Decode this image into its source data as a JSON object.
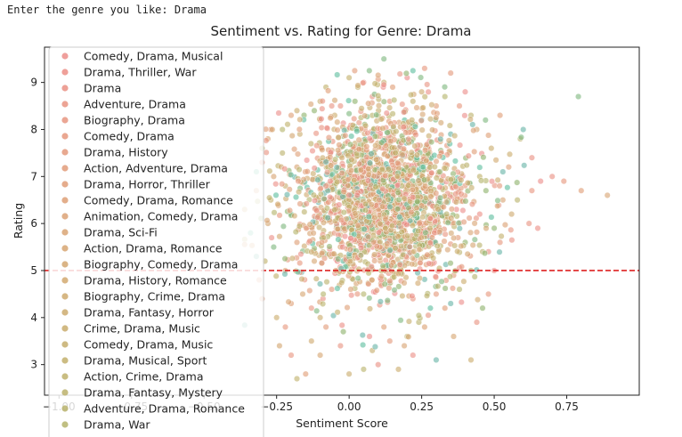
{
  "console": {
    "prompt": "Enter the genre you like: ",
    "input": "Drama"
  },
  "chart_data": {
    "type": "scatter",
    "title": "Sentiment vs. Rating for Genre: Drama",
    "xlabel": "Sentiment Score",
    "ylabel": "Rating",
    "xlim": [
      -1.05,
      1.0
    ],
    "ylim": [
      2.35,
      9.75
    ],
    "x_ticks": [
      -1.0,
      -0.75,
      -0.5,
      -0.25,
      0.0,
      0.25,
      0.5,
      0.75
    ],
    "x_tick_labels": [
      "−1.00",
      "−0.75",
      "−0.50",
      "−0.25",
      "0.00",
      "0.25",
      "0.50",
      "0.75"
    ],
    "y_ticks": [
      3,
      4,
      5,
      6,
      7,
      8,
      9
    ],
    "y_tick_labels": [
      "3",
      "4",
      "5",
      "6",
      "7",
      "8",
      "9"
    ],
    "reference_line": {
      "y": 5,
      "style": "dashed",
      "color": "#dd2222"
    },
    "legend_placement": "upper-left",
    "marker_alpha": 0.62,
    "series": [
      {
        "name": "Comedy, Drama, Musical",
        "color": "#ec8e8b"
      },
      {
        "name": "Drama, Thriller, War",
        "color": "#ec8f87"
      },
      {
        "name": "Drama",
        "color": "#ea9185"
      },
      {
        "name": "Adventure, Drama",
        "color": "#e99483"
      },
      {
        "name": "Biography, Drama",
        "color": "#e89681"
      },
      {
        "name": "Comedy, Drama",
        "color": "#e6987e"
      },
      {
        "name": "Drama, History",
        "color": "#e49a7c"
      },
      {
        "name": "Action, Adventure, Drama",
        "color": "#e29c7a"
      },
      {
        "name": "Drama, Horror, Thriller",
        "color": "#e09e78"
      },
      {
        "name": "Comedy, Drama, Romance",
        "color": "#dea077"
      },
      {
        "name": "Animation, Comedy, Drama",
        "color": "#dca275"
      },
      {
        "name": "Drama, Sci-Fi",
        "color": "#d9a474"
      },
      {
        "name": "Action, Drama, Romance",
        "color": "#d7a672"
      },
      {
        "name": "Biography, Comedy, Drama",
        "color": "#d4a771"
      },
      {
        "name": "Drama, History, Romance",
        "color": "#d2a970"
      },
      {
        "name": "Biography, Crime, Drama",
        "color": "#cfaa6f"
      },
      {
        "name": "Drama, Fantasy, Horror",
        "color": "#ccac6e"
      },
      {
        "name": "Crime, Drama, Music",
        "color": "#c9ad6d"
      },
      {
        "name": "Comedy, Drama, Music",
        "color": "#c6ae6d"
      },
      {
        "name": "Drama, Musical, Sport",
        "color": "#c3b06c"
      },
      {
        "name": "Action, Crime, Drama",
        "color": "#c0b16c"
      },
      {
        "name": "Drama, Fantasy, Mystery",
        "color": "#bcb26c"
      },
      {
        "name": "Adventure, Drama, Romance",
        "color": "#b9b36c"
      },
      {
        "name": "Drama, War",
        "color": "#b5b46c"
      }
    ],
    "points": [
      [
        0.05,
        9.0
      ],
      [
        0.12,
        9.5
      ],
      [
        0.26,
        9.3
      ],
      [
        0.35,
        9.2
      ],
      [
        0.12,
        9.0
      ],
      [
        0.2,
        9.1
      ],
      [
        0.79,
        8.7
      ],
      [
        0.4,
        8.8
      ],
      [
        -0.06,
        8.5
      ],
      [
        0.47,
        8.2
      ],
      [
        0.42,
        8.3
      ],
      [
        0.52,
        8.3
      ],
      [
        0.6,
        8.0
      ],
      [
        0.59,
        7.8
      ],
      [
        0.7,
        7.0
      ],
      [
        0.66,
        6.9
      ],
      [
        0.63,
        7.4
      ],
      [
        0.55,
        7.2
      ],
      [
        0.58,
        6.5
      ],
      [
        0.65,
        5.9
      ],
      [
        0.62,
        6.0
      ],
      [
        0.89,
        6.6
      ],
      [
        0.8,
        6.7
      ],
      [
        0.74,
        6.9
      ],
      [
        0.63,
        6.7
      ],
      [
        0.56,
        6.2
      ],
      [
        0.52,
        5.6
      ],
      [
        0.5,
        5.0
      ],
      [
        0.48,
        5.4
      ],
      [
        0.48,
        4.5
      ],
      [
        0.46,
        4.2
      ],
      [
        0.44,
        3.9
      ],
      [
        0.42,
        3.1
      ],
      [
        0.36,
        3.6
      ],
      [
        0.3,
        3.1
      ],
      [
        0.3,
        4.5
      ],
      [
        0.35,
        4.3
      ],
      [
        0.36,
        4.9
      ],
      [
        0.28,
        4.2
      ],
      [
        0.24,
        3.9
      ],
      [
        0.12,
        3.8
      ],
      [
        0.08,
        3.3
      ],
      [
        0.1,
        3.0
      ],
      [
        0.0,
        2.8
      ],
      [
        0.05,
        2.9
      ],
      [
        0.17,
        2.9
      ],
      [
        0.22,
        3.2
      ],
      [
        0.19,
        3.4
      ],
      [
        -0.03,
        3.4
      ],
      [
        -0.1,
        3.2
      ],
      [
        -0.15,
        2.8
      ],
      [
        -0.18,
        2.7
      ],
      [
        -0.2,
        3.2
      ],
      [
        -0.24,
        3.4
      ],
      [
        -0.22,
        3.8
      ],
      [
        -0.13,
        3.5
      ],
      [
        -0.08,
        3.8
      ],
      [
        -0.13,
        4.2
      ],
      [
        -0.25,
        4.0
      ],
      [
        -0.2,
        4.3
      ],
      [
        -0.3,
        4.4
      ],
      [
        -0.31,
        4.8
      ],
      [
        -0.29,
        5.2
      ],
      [
        -0.32,
        5.3
      ],
      [
        -0.34,
        5.8
      ],
      [
        -0.36,
        6.3
      ],
      [
        -0.32,
        6.7
      ],
      [
        -0.32,
        7.1
      ],
      [
        -0.3,
        7.3
      ],
      [
        -0.3,
        7.6
      ],
      [
        -0.28,
        7.8
      ],
      [
        -0.27,
        8.0
      ],
      [
        -0.23,
        8.0
      ],
      [
        -0.2,
        8.3
      ],
      [
        -0.18,
        8.4
      ],
      [
        -0.12,
        8.4
      ],
      [
        -0.1,
        8.6
      ],
      [
        -0.08,
        8.9
      ],
      [
        0.0,
        9.1
      ],
      [
        0.03,
        8.9
      ],
      [
        0.15,
        8.9
      ],
      [
        0.25,
        8.8
      ],
      [
        0.33,
        8.7
      ],
      [
        0.38,
        8.5
      ],
      [
        0.02,
        8.6
      ],
      [
        0.08,
        8.7
      ],
      [
        0.14,
        8.6
      ],
      [
        0.22,
        8.6
      ],
      [
        0.3,
        8.5
      ],
      [
        -0.05,
        8.3
      ],
      [
        0.44,
        8.0
      ],
      [
        0.49,
        7.6
      ],
      [
        0.53,
        7.1
      ],
      [
        0.53,
        6.5
      ],
      [
        0.5,
        5.9
      ],
      [
        0.46,
        5.4
      ],
      [
        0.42,
        5.0
      ],
      [
        0.38,
        4.6
      ],
      [
        0.33,
        4.2
      ],
      [
        0.26,
        3.8
      ],
      [
        0.2,
        3.6
      ],
      [
        0.14,
        3.5
      ],
      [
        0.07,
        3.6
      ],
      [
        -0.02,
        3.7
      ],
      [
        -0.1,
        4.0
      ],
      [
        -0.16,
        4.5
      ],
      [
        -0.22,
        5.0
      ],
      [
        -0.26,
        5.5
      ],
      [
        -0.28,
        6.0
      ],
      [
        -0.27,
        6.5
      ],
      [
        -0.26,
        7.0
      ],
      [
        -0.23,
        7.5
      ],
      [
        -0.17,
        7.9
      ],
      [
        -0.1,
        8.2
      ],
      [
        -0.03,
        8.5
      ],
      [
        0.45,
        7.0
      ],
      [
        0.45,
        6.2
      ],
      [
        0.4,
        5.6
      ],
      [
        -0.2,
        6.2
      ],
      [
        -0.22,
        6.8
      ],
      [
        -0.18,
        7.2
      ],
      [
        -0.18,
        5.6
      ],
      [
        0.35,
        7.9
      ],
      [
        0.1,
        8.3
      ],
      [
        0.25,
        8.2
      ],
      [
        0.27,
        5.3
      ],
      [
        -0.12,
        5.2
      ],
      [
        0.05,
        4.5
      ],
      [
        0.22,
        4.4
      ],
      [
        -0.06,
        4.6
      ]
    ],
    "scatter_spec": {
      "n_points": 2200,
      "x_center": 0.12,
      "x_spread": 0.15,
      "y_center": 6.5,
      "y_spread": 0.95
    }
  }
}
